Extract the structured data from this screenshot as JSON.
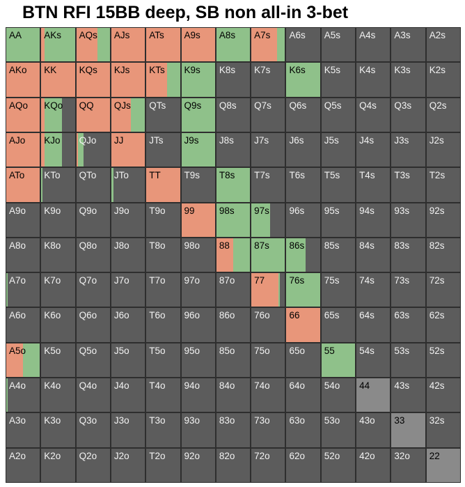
{
  "title": "BTN RFI 15BB deep, SB non all-in 3-bet",
  "colors": {
    "raise_allin": "#e8967a",
    "call": "#8fc18a",
    "fold": "#5c5c5c",
    "fold_pair": "#8a8a8a",
    "grid_line": "#2e2e2e"
  },
  "chart_data": {
    "type": "heatmap",
    "title": "BTN RFI 15BB deep, SB non all-in 3-bet",
    "ranks": [
      "A",
      "K",
      "Q",
      "J",
      "T",
      "9",
      "8",
      "7",
      "6",
      "5",
      "4",
      "3",
      "2"
    ],
    "segments_order": [
      "raise_allin",
      "call"
    ],
    "note_units": "frequency 0-1 per action, remainder fold",
    "rows": [
      [
        {
          "hand": "AA",
          "freq": [
            0.0,
            1.0
          ]
        },
        {
          "hand": "AKs",
          "freq": [
            0.1,
            0.9
          ]
        },
        {
          "hand": "AQs",
          "freq": [
            0.62,
            0.38
          ]
        },
        {
          "hand": "AJs",
          "freq": [
            1.0,
            0.0
          ]
        },
        {
          "hand": "ATs",
          "freq": [
            1.0,
            0.0
          ]
        },
        {
          "hand": "A9s",
          "freq": [
            1.0,
            0.0
          ]
        },
        {
          "hand": "A8s",
          "freq": [
            0.0,
            1.0
          ]
        },
        {
          "hand": "A7s",
          "freq": [
            0.76,
            0.24
          ]
        },
        {
          "hand": "A6s",
          "freq": [
            0.0,
            0.0
          ]
        },
        {
          "hand": "A5s",
          "freq": [
            0.0,
            0.0
          ]
        },
        {
          "hand": "A4s",
          "freq": [
            0.0,
            0.0
          ]
        },
        {
          "hand": "A3s",
          "freq": [
            0.0,
            0.0
          ]
        },
        {
          "hand": "A2s",
          "freq": [
            0.0,
            0.0
          ]
        }
      ],
      [
        {
          "hand": "AKo",
          "freq": [
            1.0,
            0.0
          ]
        },
        {
          "hand": "KK",
          "freq": [
            1.0,
            0.0
          ]
        },
        {
          "hand": "KQs",
          "freq": [
            1.0,
            0.0
          ]
        },
        {
          "hand": "KJs",
          "freq": [
            1.0,
            0.0
          ]
        },
        {
          "hand": "KTs",
          "freq": [
            0.62,
            0.38
          ]
        },
        {
          "hand": "K9s",
          "freq": [
            0.0,
            1.0
          ]
        },
        {
          "hand": "K8s",
          "freq": [
            0.0,
            0.0
          ]
        },
        {
          "hand": "K7s",
          "freq": [
            0.0,
            0.0
          ]
        },
        {
          "hand": "K6s",
          "freq": [
            0.0,
            1.0
          ]
        },
        {
          "hand": "K5s",
          "freq": [
            0.0,
            0.0
          ]
        },
        {
          "hand": "K4s",
          "freq": [
            0.0,
            0.0
          ]
        },
        {
          "hand": "K3s",
          "freq": [
            0.0,
            0.0
          ]
        },
        {
          "hand": "K2s",
          "freq": [
            0.0,
            0.0
          ]
        }
      ],
      [
        {
          "hand": "AQo",
          "freq": [
            1.0,
            0.0
          ]
        },
        {
          "hand": "KQo",
          "freq": [
            0.1,
            0.52
          ]
        },
        {
          "hand": "QQ",
          "freq": [
            1.0,
            0.0
          ]
        },
        {
          "hand": "QJs",
          "freq": [
            0.58,
            0.42
          ]
        },
        {
          "hand": "QTs",
          "freq": [
            0.0,
            0.0
          ]
        },
        {
          "hand": "Q9s",
          "freq": [
            0.0,
            1.0
          ]
        },
        {
          "hand": "Q8s",
          "freq": [
            0.0,
            0.0
          ]
        },
        {
          "hand": "Q7s",
          "freq": [
            0.0,
            0.0
          ]
        },
        {
          "hand": "Q6s",
          "freq": [
            0.0,
            0.0
          ]
        },
        {
          "hand": "Q5s",
          "freq": [
            0.0,
            0.0
          ]
        },
        {
          "hand": "Q4s",
          "freq": [
            0.0,
            0.0
          ]
        },
        {
          "hand": "Q3s",
          "freq": [
            0.0,
            0.0
          ]
        },
        {
          "hand": "Q2s",
          "freq": [
            0.0,
            0.0
          ]
        }
      ],
      [
        {
          "hand": "AJo",
          "freq": [
            1.0,
            0.0
          ]
        },
        {
          "hand": "KJo",
          "freq": [
            0.1,
            0.52
          ]
        },
        {
          "hand": "QJo",
          "freq": [
            0.04,
            0.18
          ]
        },
        {
          "hand": "JJ",
          "freq": [
            1.0,
            0.0
          ]
        },
        {
          "hand": "JTs",
          "freq": [
            0.0,
            0.0
          ]
        },
        {
          "hand": "J9s",
          "freq": [
            0.0,
            1.0
          ]
        },
        {
          "hand": "J8s",
          "freq": [
            0.0,
            0.0
          ]
        },
        {
          "hand": "J7s",
          "freq": [
            0.0,
            0.0
          ]
        },
        {
          "hand": "J6s",
          "freq": [
            0.0,
            0.0
          ]
        },
        {
          "hand": "J5s",
          "freq": [
            0.0,
            0.0
          ]
        },
        {
          "hand": "J4s",
          "freq": [
            0.0,
            0.0
          ]
        },
        {
          "hand": "J3s",
          "freq": [
            0.0,
            0.0
          ]
        },
        {
          "hand": "J2s",
          "freq": [
            0.0,
            0.0
          ]
        }
      ],
      [
        {
          "hand": "ATo",
          "freq": [
            1.0,
            0.0
          ]
        },
        {
          "hand": "KTo",
          "freq": [
            0.0,
            0.04
          ]
        },
        {
          "hand": "QTo",
          "freq": [
            0.0,
            0.0
          ]
        },
        {
          "hand": "JTo",
          "freq": [
            0.0,
            0.06
          ]
        },
        {
          "hand": "TT",
          "freq": [
            1.0,
            0.0
          ]
        },
        {
          "hand": "T9s",
          "freq": [
            0.0,
            0.0
          ]
        },
        {
          "hand": "T8s",
          "freq": [
            0.0,
            1.0
          ]
        },
        {
          "hand": "T7s",
          "freq": [
            0.0,
            0.0
          ]
        },
        {
          "hand": "T6s",
          "freq": [
            0.0,
            0.0
          ]
        },
        {
          "hand": "T5s",
          "freq": [
            0.0,
            0.0
          ]
        },
        {
          "hand": "T4s",
          "freq": [
            0.0,
            0.0
          ]
        },
        {
          "hand": "T3s",
          "freq": [
            0.0,
            0.0
          ]
        },
        {
          "hand": "T2s",
          "freq": [
            0.0,
            0.0
          ]
        }
      ],
      [
        {
          "hand": "A9o",
          "freq": [
            0.0,
            0.0
          ]
        },
        {
          "hand": "K9o",
          "freq": [
            0.0,
            0.0
          ]
        },
        {
          "hand": "Q9o",
          "freq": [
            0.0,
            0.0
          ]
        },
        {
          "hand": "J9o",
          "freq": [
            0.0,
            0.0
          ]
        },
        {
          "hand": "T9o",
          "freq": [
            0.0,
            0.0
          ]
        },
        {
          "hand": "99",
          "freq": [
            1.0,
            0.0
          ]
        },
        {
          "hand": "98s",
          "freq": [
            0.0,
            1.0
          ]
        },
        {
          "hand": "97s",
          "freq": [
            0.0,
            0.56
          ]
        },
        {
          "hand": "96s",
          "freq": [
            0.0,
            0.0
          ]
        },
        {
          "hand": "95s",
          "freq": [
            0.0,
            0.0
          ]
        },
        {
          "hand": "94s",
          "freq": [
            0.0,
            0.0
          ]
        },
        {
          "hand": "93s",
          "freq": [
            0.0,
            0.0
          ]
        },
        {
          "hand": "92s",
          "freq": [
            0.0,
            0.0
          ]
        }
      ],
      [
        {
          "hand": "A8o",
          "freq": [
            0.0,
            0.0
          ]
        },
        {
          "hand": "K8o",
          "freq": [
            0.0,
            0.0
          ]
        },
        {
          "hand": "Q8o",
          "freq": [
            0.0,
            0.0
          ]
        },
        {
          "hand": "J8o",
          "freq": [
            0.0,
            0.0
          ]
        },
        {
          "hand": "T8o",
          "freq": [
            0.0,
            0.0
          ]
        },
        {
          "hand": "98o",
          "freq": [
            0.0,
            0.0
          ]
        },
        {
          "hand": "88",
          "freq": [
            0.5,
            0.5
          ]
        },
        {
          "hand": "87s",
          "freq": [
            0.0,
            1.0
          ]
        },
        {
          "hand": "86s",
          "freq": [
            0.0,
            0.58
          ]
        },
        {
          "hand": "85s",
          "freq": [
            0.0,
            0.0
          ]
        },
        {
          "hand": "84s",
          "freq": [
            0.0,
            0.0
          ]
        },
        {
          "hand": "83s",
          "freq": [
            0.0,
            0.0
          ]
        },
        {
          "hand": "82s",
          "freq": [
            0.0,
            0.0
          ]
        }
      ],
      [
        {
          "hand": "A7o",
          "freq": [
            0.0,
            0.04
          ]
        },
        {
          "hand": "K7o",
          "freq": [
            0.0,
            0.0
          ]
        },
        {
          "hand": "Q7o",
          "freq": [
            0.0,
            0.0
          ]
        },
        {
          "hand": "J7o",
          "freq": [
            0.0,
            0.0
          ]
        },
        {
          "hand": "T7o",
          "freq": [
            0.0,
            0.0
          ]
        },
        {
          "hand": "97o",
          "freq": [
            0.0,
            0.0
          ]
        },
        {
          "hand": "87o",
          "freq": [
            0.0,
            0.0
          ]
        },
        {
          "hand": "77",
          "freq": [
            0.8,
            0.04
          ]
        },
        {
          "hand": "76s",
          "freq": [
            0.0,
            1.0
          ]
        },
        {
          "hand": "75s",
          "freq": [
            0.0,
            0.0
          ]
        },
        {
          "hand": "74s",
          "freq": [
            0.0,
            0.0
          ]
        },
        {
          "hand": "73s",
          "freq": [
            0.0,
            0.0
          ]
        },
        {
          "hand": "72s",
          "freq": [
            0.0,
            0.0
          ]
        }
      ],
      [
        {
          "hand": "A6o",
          "freq": [
            0.0,
            0.0
          ]
        },
        {
          "hand": "K6o",
          "freq": [
            0.0,
            0.0
          ]
        },
        {
          "hand": "Q6o",
          "freq": [
            0.0,
            0.0
          ]
        },
        {
          "hand": "J6o",
          "freq": [
            0.0,
            0.0
          ]
        },
        {
          "hand": "T6o",
          "freq": [
            0.0,
            0.0
          ]
        },
        {
          "hand": "96o",
          "freq": [
            0.0,
            0.0
          ]
        },
        {
          "hand": "86o",
          "freq": [
            0.0,
            0.0
          ]
        },
        {
          "hand": "76o",
          "freq": [
            0.0,
            0.0
          ]
        },
        {
          "hand": "66",
          "freq": [
            1.0,
            0.0
          ]
        },
        {
          "hand": "65s",
          "freq": [
            0.0,
            0.0
          ]
        },
        {
          "hand": "64s",
          "freq": [
            0.0,
            0.0
          ]
        },
        {
          "hand": "63s",
          "freq": [
            0.0,
            0.0
          ]
        },
        {
          "hand": "62s",
          "freq": [
            0.0,
            0.0
          ]
        }
      ],
      [
        {
          "hand": "A5o",
          "freq": [
            0.5,
            0.5
          ]
        },
        {
          "hand": "K5o",
          "freq": [
            0.0,
            0.0
          ]
        },
        {
          "hand": "Q5o",
          "freq": [
            0.0,
            0.0
          ]
        },
        {
          "hand": "J5o",
          "freq": [
            0.0,
            0.0
          ]
        },
        {
          "hand": "T5o",
          "freq": [
            0.0,
            0.0
          ]
        },
        {
          "hand": "95o",
          "freq": [
            0.0,
            0.0
          ]
        },
        {
          "hand": "85o",
          "freq": [
            0.0,
            0.0
          ]
        },
        {
          "hand": "75o",
          "freq": [
            0.0,
            0.0
          ]
        },
        {
          "hand": "65o",
          "freq": [
            0.0,
            0.0
          ]
        },
        {
          "hand": "55",
          "freq": [
            0.0,
            1.0
          ]
        },
        {
          "hand": "54s",
          "freq": [
            0.0,
            0.0
          ]
        },
        {
          "hand": "53s",
          "freq": [
            0.0,
            0.0
          ]
        },
        {
          "hand": "52s",
          "freq": [
            0.0,
            0.0
          ]
        }
      ],
      [
        {
          "hand": "A4o",
          "freq": [
            0.0,
            0.04
          ]
        },
        {
          "hand": "K4o",
          "freq": [
            0.0,
            0.0
          ]
        },
        {
          "hand": "Q4o",
          "freq": [
            0.0,
            0.0
          ]
        },
        {
          "hand": "J4o",
          "freq": [
            0.0,
            0.0
          ]
        },
        {
          "hand": "T4o",
          "freq": [
            0.0,
            0.0
          ]
        },
        {
          "hand": "94o",
          "freq": [
            0.0,
            0.0
          ]
        },
        {
          "hand": "84o",
          "freq": [
            0.0,
            0.0
          ]
        },
        {
          "hand": "74o",
          "freq": [
            0.0,
            0.0
          ]
        },
        {
          "hand": "64o",
          "freq": [
            0.0,
            0.0
          ]
        },
        {
          "hand": "54o",
          "freq": [
            0.0,
            0.0
          ]
        },
        {
          "hand": "44",
          "freq": [
            0.0,
            0.0
          ]
        },
        {
          "hand": "43s",
          "freq": [
            0.0,
            0.0
          ]
        },
        {
          "hand": "42s",
          "freq": [
            0.0,
            0.0
          ]
        }
      ],
      [
        {
          "hand": "A3o",
          "freq": [
            0.0,
            0.0
          ]
        },
        {
          "hand": "K3o",
          "freq": [
            0.0,
            0.0
          ]
        },
        {
          "hand": "Q3o",
          "freq": [
            0.0,
            0.0
          ]
        },
        {
          "hand": "J3o",
          "freq": [
            0.0,
            0.0
          ]
        },
        {
          "hand": "T3o",
          "freq": [
            0.0,
            0.0
          ]
        },
        {
          "hand": "93o",
          "freq": [
            0.0,
            0.0
          ]
        },
        {
          "hand": "83o",
          "freq": [
            0.0,
            0.0
          ]
        },
        {
          "hand": "73o",
          "freq": [
            0.0,
            0.0
          ]
        },
        {
          "hand": "63o",
          "freq": [
            0.0,
            0.0
          ]
        },
        {
          "hand": "53o",
          "freq": [
            0.0,
            0.0
          ]
        },
        {
          "hand": "43o",
          "freq": [
            0.0,
            0.0
          ]
        },
        {
          "hand": "33",
          "freq": [
            0.0,
            0.0
          ]
        },
        {
          "hand": "32s",
          "freq": [
            0.0,
            0.0
          ]
        }
      ],
      [
        {
          "hand": "A2o",
          "freq": [
            0.0,
            0.0
          ]
        },
        {
          "hand": "K2o",
          "freq": [
            0.0,
            0.0
          ]
        },
        {
          "hand": "Q2o",
          "freq": [
            0.0,
            0.0
          ]
        },
        {
          "hand": "J2o",
          "freq": [
            0.0,
            0.0
          ]
        },
        {
          "hand": "T2o",
          "freq": [
            0.0,
            0.0
          ]
        },
        {
          "hand": "92o",
          "freq": [
            0.0,
            0.0
          ]
        },
        {
          "hand": "82o",
          "freq": [
            0.0,
            0.0
          ]
        },
        {
          "hand": "72o",
          "freq": [
            0.0,
            0.0
          ]
        },
        {
          "hand": "62o",
          "freq": [
            0.0,
            0.0
          ]
        },
        {
          "hand": "52o",
          "freq": [
            0.0,
            0.0
          ]
        },
        {
          "hand": "42o",
          "freq": [
            0.0,
            0.0
          ]
        },
        {
          "hand": "32o",
          "freq": [
            0.0,
            0.0
          ]
        },
        {
          "hand": "22",
          "freq": [
            0.0,
            0.0
          ]
        }
      ]
    ]
  }
}
